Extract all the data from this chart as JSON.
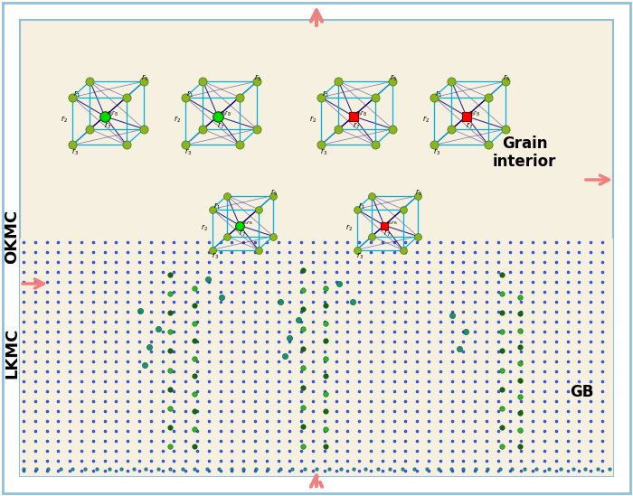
{
  "bg_color": "#f5f0e0",
  "border_color": "#add8e6",
  "gb_dot_color": "#2244cc",
  "atom_color_yg": "#8ab520",
  "atom_color_bright_green": "#00dd00",
  "atom_color_red": "#ff0000",
  "atom_color_teal": "#008080",
  "cube_edge_cyan": "#00b0e0",
  "cube_edge_blue": "#000080",
  "arrow_color": "#f08080",
  "okmc_label": "OKMC",
  "lkmc_label": "LKMC",
  "gb_label": "GB",
  "grain_interior_label": "Grain\ninterior",
  "fig_width": 7.0,
  "fig_height": 5.49,
  "dpi": 100
}
